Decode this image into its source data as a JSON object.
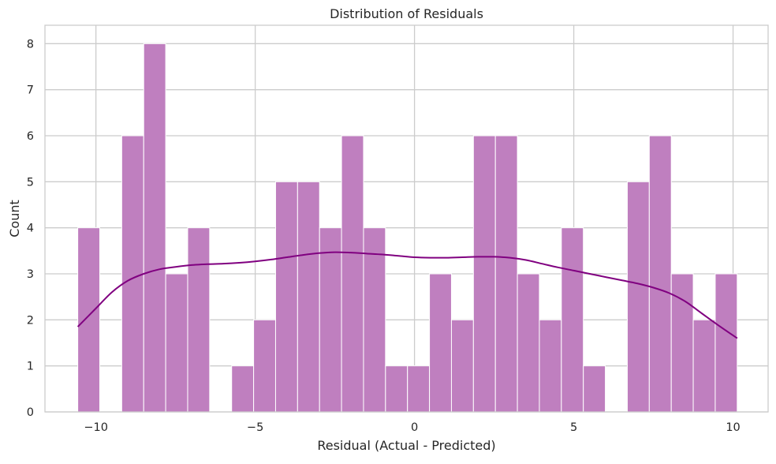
{
  "chart_data": {
    "type": "bar",
    "title": "Distribution of Residuals",
    "xlabel": "Residual (Actual - Predicted)",
    "ylabel": "Count",
    "xlim": [
      -11.6,
      11.1
    ],
    "ylim": [
      0,
      8.4
    ],
    "x_ticks": [
      -10,
      -5,
      0,
      5,
      10
    ],
    "x_tick_labels": [
      "−10",
      "−5",
      "0",
      "5",
      "10"
    ],
    "y_ticks": [
      0,
      1,
      2,
      3,
      4,
      5,
      6,
      7,
      8
    ],
    "y_tick_labels": [
      "0",
      "1",
      "2",
      "3",
      "4",
      "5",
      "6",
      "7",
      "8"
    ],
    "grid": true,
    "bin_start": -10.57,
    "bin_width": 0.69,
    "counts": [
      4,
      0,
      6,
      8,
      3,
      4,
      0,
      1,
      2,
      5,
      5,
      4,
      6,
      4,
      1,
      1,
      3,
      2,
      6,
      6,
      3,
      2,
      4,
      1,
      0,
      5,
      6,
      3,
      2,
      3
    ],
    "kde": {
      "x": [
        -10.57,
        -10.0,
        -9.5,
        -9.0,
        -8.5,
        -8.0,
        -7.5,
        -7.0,
        -6.5,
        -6.0,
        -5.5,
        -5.0,
        -4.5,
        -4.0,
        -3.5,
        -3.0,
        -2.5,
        -2.0,
        -1.5,
        -1.0,
        -0.5,
        0.0,
        0.5,
        1.0,
        1.5,
        2.0,
        2.5,
        3.0,
        3.5,
        4.0,
        4.5,
        5.0,
        5.5,
        6.0,
        6.5,
        7.0,
        7.5,
        8.0,
        8.5,
        9.0,
        9.5,
        10.13
      ],
      "y": [
        1.85,
        2.25,
        2.6,
        2.85,
        3.0,
        3.1,
        3.15,
        3.19,
        3.21,
        3.22,
        3.24,
        3.27,
        3.31,
        3.36,
        3.41,
        3.45,
        3.47,
        3.46,
        3.44,
        3.42,
        3.39,
        3.36,
        3.35,
        3.35,
        3.36,
        3.37,
        3.37,
        3.35,
        3.3,
        3.22,
        3.14,
        3.07,
        3.0,
        2.93,
        2.86,
        2.79,
        2.7,
        2.58,
        2.4,
        2.15,
        1.9,
        1.6
      ]
    },
    "colors": {
      "bar_fill": "#bf7fbf",
      "bar_stroke": "#ffffff",
      "kde_line": "#800080",
      "grid": "#cccccc",
      "axes_edge": "#cccccc"
    }
  }
}
